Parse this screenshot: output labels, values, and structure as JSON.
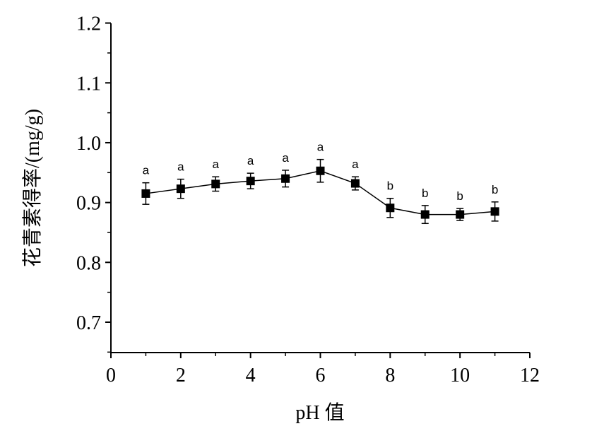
{
  "chart_data": {
    "type": "line",
    "title": "",
    "xlabel": "pH 值",
    "ylabel": "花青素得率/(mg/g)",
    "xlim": [
      0,
      12
    ],
    "ylim": [
      0.65,
      1.2
    ],
    "x_ticks": [
      "0",
      "2",
      "4",
      "6",
      "8",
      "10",
      "12"
    ],
    "y_ticks": [
      "0.7",
      "0.8",
      "0.9",
      "1.0",
      "1.1",
      "1.2"
    ],
    "grid": false,
    "legend": "none",
    "series": [
      {
        "marker": "square",
        "color": "#000000",
        "x": [
          1,
          2,
          3,
          4,
          5,
          6,
          7,
          8,
          9,
          10,
          11
        ],
        "values": [
          0.915,
          0.923,
          0.931,
          0.936,
          0.94,
          0.953,
          0.932,
          0.891,
          0.88,
          0.88,
          0.885
        ],
        "error": [
          0.018,
          0.016,
          0.012,
          0.013,
          0.014,
          0.019,
          0.011,
          0.016,
          0.015,
          0.01,
          0.016
        ],
        "significance_labels": [
          "a",
          "a",
          "a",
          "a",
          "a",
          "a",
          "a",
          "b",
          "b",
          "b",
          "b"
        ]
      }
    ]
  }
}
